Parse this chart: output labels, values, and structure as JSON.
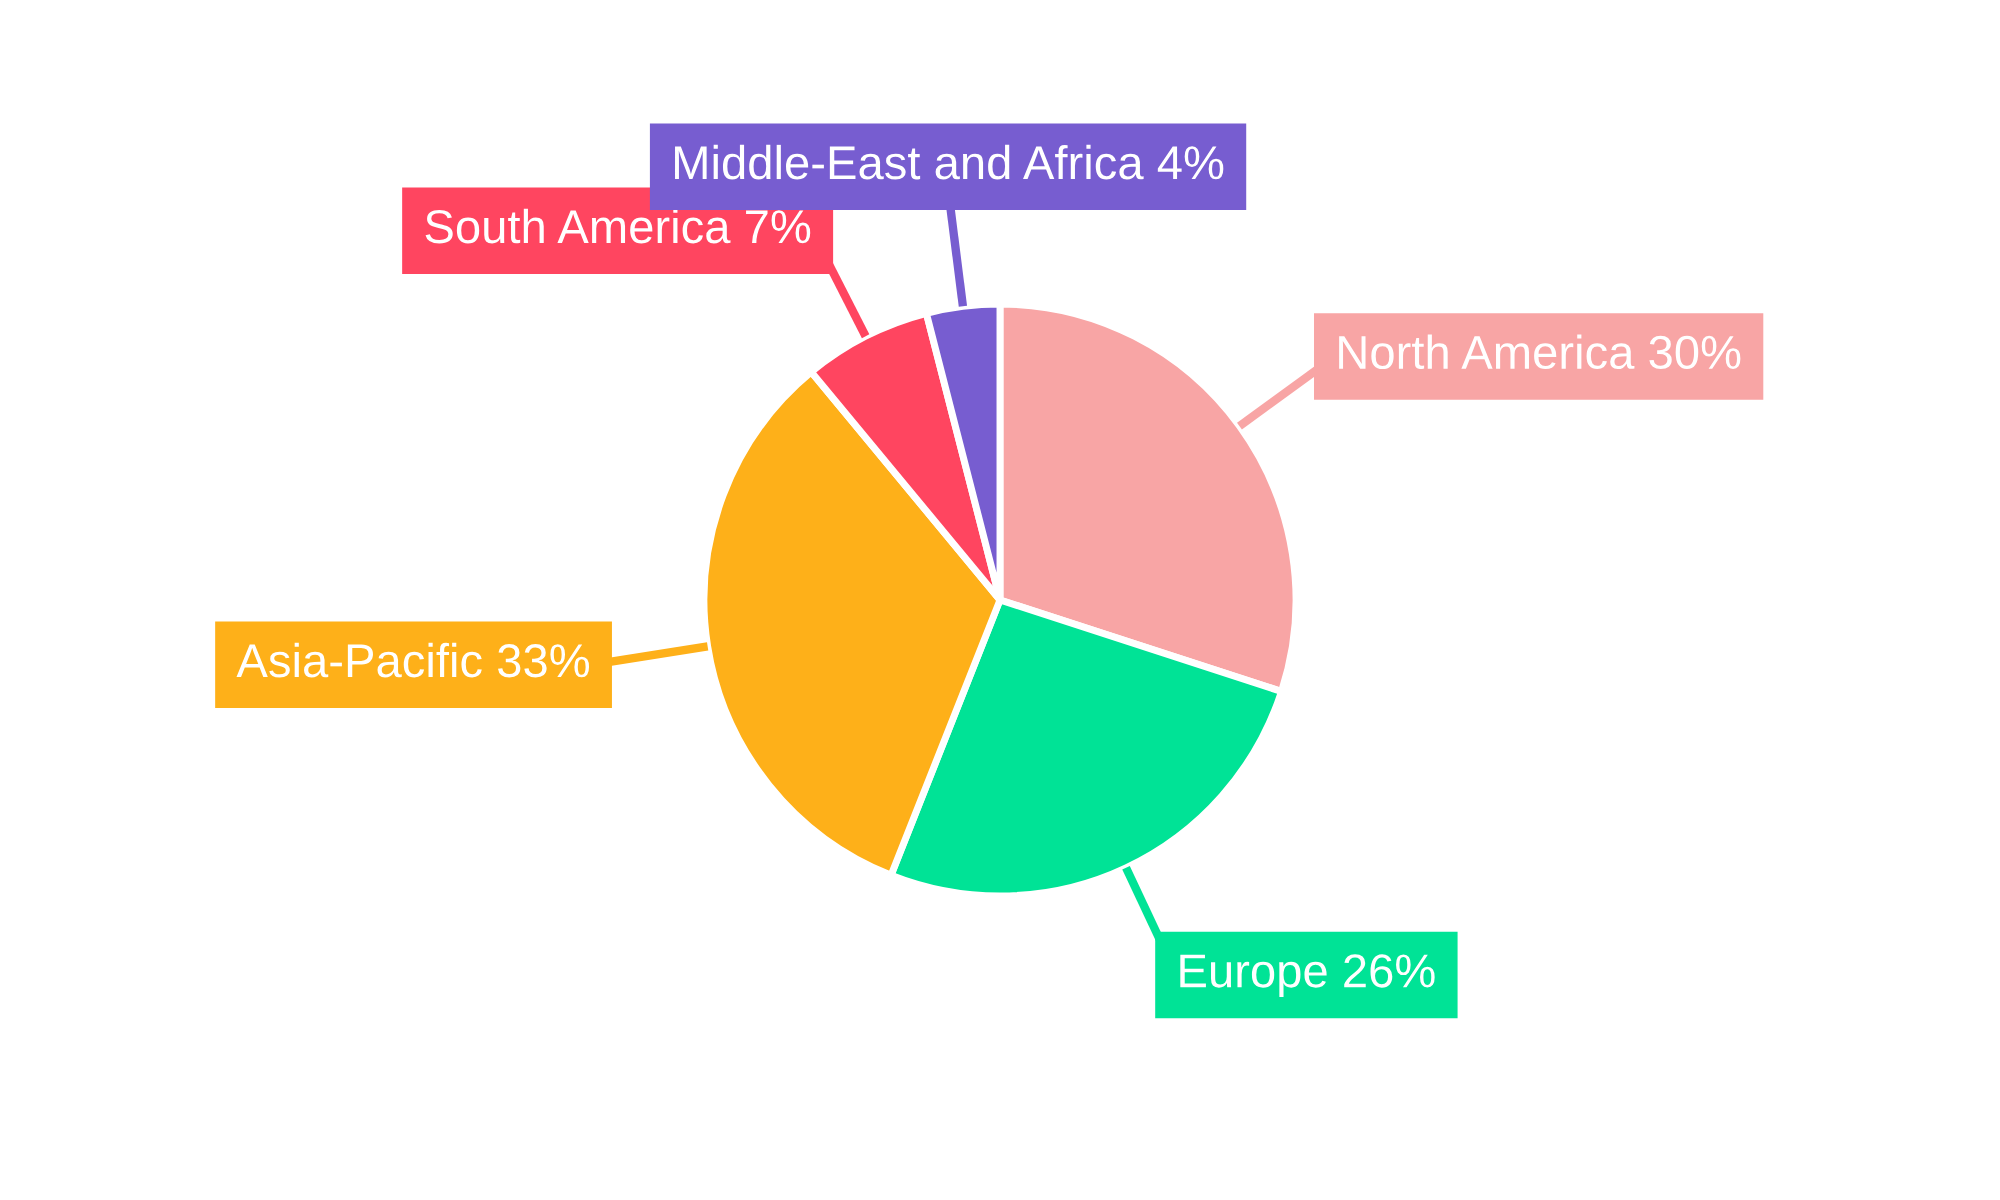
{
  "chart_data": {
    "type": "pie",
    "categories": [
      "North America",
      "Europe",
      "Asia-Pacific",
      "South America",
      "Middle-East and Africa"
    ],
    "values": [
      30,
      26,
      33,
      7,
      4
    ],
    "value_labels": [
      "30%",
      "26%",
      "33%",
      "7%",
      "4%"
    ],
    "colors": [
      "#f8a5a5",
      "#00e396",
      "#feb019",
      "#ff4560",
      "#775dd0"
    ]
  }
}
